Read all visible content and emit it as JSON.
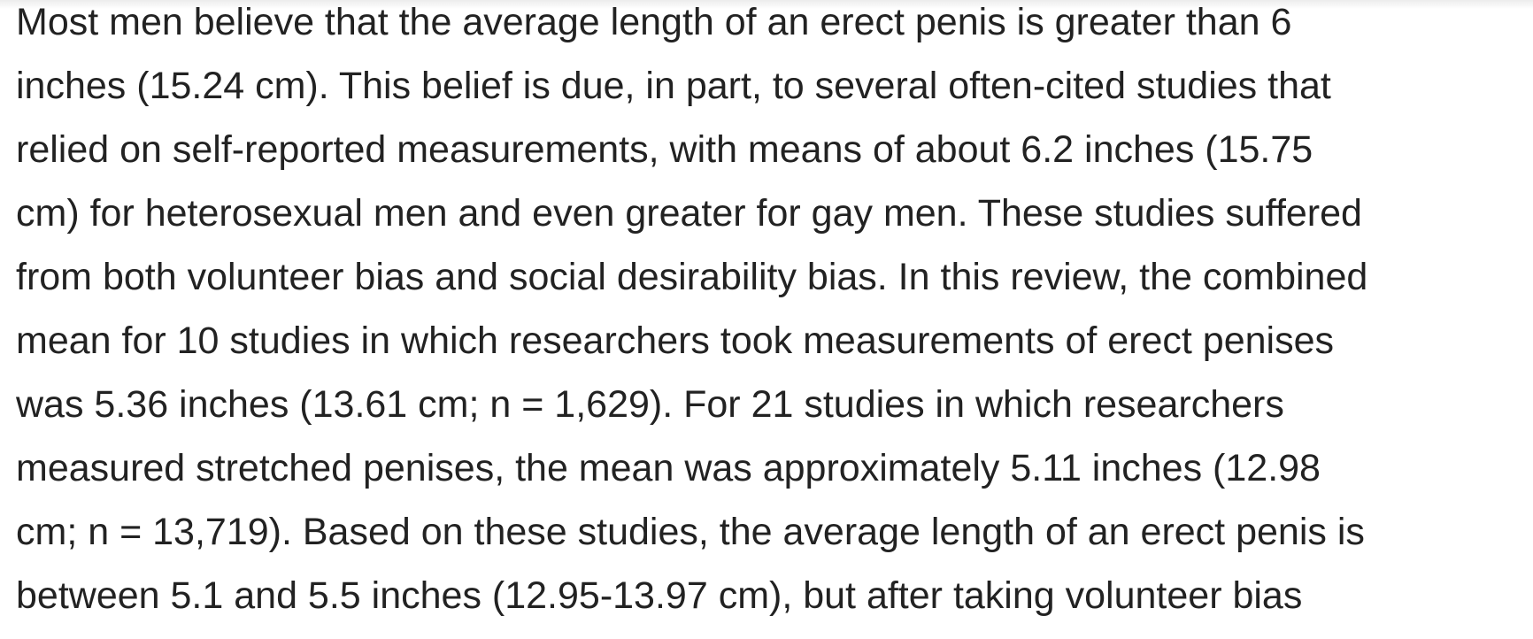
{
  "article": {
    "lines": [
      "Most men believe that the average length of an erect penis is greater than 6",
      "inches (15.24 cm). This belief is due, in part, to several often-cited studies that",
      "relied on self-reported measurements, with means of about 6.2 inches (15.75",
      "cm) for heterosexual men and even greater for gay men. These studies suffered",
      "from both volunteer bias and social desirability bias. In this review, the combined",
      "mean for 10 studies in which researchers took measurements of erect penises",
      "was 5.36 inches (13.61 cm; n = 1,629). For 21 studies in which researchers",
      "measured stretched penises, the mean was approximately 5.11 inches (12.98",
      "cm; n = 13,719). Based on these studies, the average length of an erect penis is",
      "between 5.1 and 5.5 inches (12.95-13.97 cm), but after taking volunteer bias"
    ]
  }
}
